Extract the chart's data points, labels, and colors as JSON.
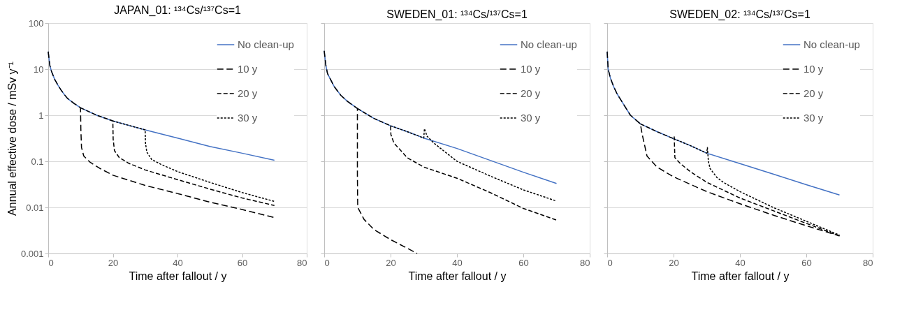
{
  "chart_data": [
    {
      "type": "line",
      "title": "JAPAN_01: ¹³⁴Cs/¹³⁷Cs=1",
      "xlabel": "Time after fallout / y",
      "ylabel": "Annual effective dose / mSv y⁻¹",
      "xlim": [
        0,
        80
      ],
      "xticks": [
        0,
        20,
        40,
        60,
        80
      ],
      "ylim": [
        0.001,
        100
      ],
      "yticks": [
        0.001,
        0.01,
        0.1,
        1,
        10,
        100
      ],
      "log": "y",
      "grid": "y",
      "legend": "top right",
      "series": [
        {
          "name": "No clean-up",
          "color": "#4472c4",
          "line_style": "solid",
          "x": [
            0,
            0.5,
            1,
            2,
            3,
            4,
            5,
            6,
            8,
            10,
            15,
            20,
            25,
            30,
            40,
            50,
            60,
            70
          ],
          "values": [
            24,
            12,
            9,
            6,
            4.5,
            3.5,
            2.8,
            2.3,
            1.8,
            1.45,
            1.0,
            0.75,
            0.6,
            0.48,
            0.32,
            0.21,
            0.15,
            0.105
          ]
        },
        {
          "name": "10 y",
          "color": "#000000",
          "line_style": "dashed",
          "x": [
            0,
            0.5,
            1,
            2,
            3,
            4,
            5,
            6,
            8,
            10,
            10.1,
            10.3,
            11,
            13,
            16,
            20,
            30,
            40,
            50,
            60,
            70
          ],
          "values": [
            24,
            12,
            9,
            6,
            4.5,
            3.5,
            2.8,
            2.3,
            1.8,
            1.45,
            0.5,
            0.2,
            0.13,
            0.095,
            0.07,
            0.05,
            0.03,
            0.02,
            0.013,
            0.009,
            0.006
          ]
        },
        {
          "name": "20 y",
          "color": "#000000",
          "line_style": "dashed",
          "x": [
            10,
            15,
            20,
            20.1,
            20.5,
            22,
            25,
            30,
            40,
            50,
            60,
            70
          ],
          "values": [
            1.45,
            1.0,
            0.75,
            0.3,
            0.17,
            0.12,
            0.09,
            0.065,
            0.04,
            0.025,
            0.016,
            0.011
          ]
        },
        {
          "name": "30 y",
          "color": "#000000",
          "line_style": "dotted",
          "x": [
            20,
            25,
            30,
            30.1,
            30.5,
            32,
            35,
            40,
            50,
            60,
            70
          ],
          "values": [
            0.75,
            0.6,
            0.48,
            0.25,
            0.16,
            0.11,
            0.085,
            0.06,
            0.035,
            0.021,
            0.0135
          ]
        }
      ]
    },
    {
      "type": "line",
      "title": "SWEDEN_01: ¹³⁴Cs/¹³⁷Cs=1",
      "xlabel": "Time after fallout / y",
      "xlim": [
        0,
        80
      ],
      "xticks": [
        0,
        20,
        40,
        60,
        80
      ],
      "ylim": [
        0.001,
        100
      ],
      "yticks": [
        0.001,
        0.01,
        0.1,
        1,
        10,
        100
      ],
      "log": "y",
      "grid": "y",
      "legend": "top right",
      "tick_labels": "x",
      "series": [
        {
          "name": "No clean-up",
          "color": "#4472c4",
          "line_style": "solid",
          "x": [
            0,
            0.5,
            1,
            2,
            3,
            5,
            7,
            10,
            15,
            20,
            25,
            30,
            40,
            50,
            60,
            70
          ],
          "values": [
            25,
            12,
            8,
            5.8,
            4.2,
            2.7,
            2.0,
            1.4,
            0.85,
            0.59,
            0.44,
            0.32,
            0.19,
            0.105,
            0.058,
            0.033
          ]
        },
        {
          "name": "10 y",
          "color": "#000000",
          "line_style": "dashed",
          "x": [
            0,
            0.5,
            1,
            2,
            3,
            5,
            7,
            10,
            10,
            10.1,
            12,
            15,
            20,
            25,
            28
          ],
          "values": [
            25,
            12,
            8,
            5.8,
            4.2,
            2.7,
            2.0,
            1.4,
            0.05,
            0.01,
            0.0055,
            0.0033,
            0.002,
            0.0013,
            0.001
          ]
        },
        {
          "name": "20 y",
          "color": "#000000",
          "line_style": "dashed",
          "x": [
            10,
            15,
            20,
            20.1,
            21,
            25,
            30,
            40,
            50,
            60,
            70
          ],
          "values": [
            1.4,
            0.85,
            0.59,
            0.38,
            0.25,
            0.12,
            0.075,
            0.043,
            0.021,
            0.0095,
            0.0053
          ]
        },
        {
          "name": "30 y",
          "color": "#000000",
          "line_style": "dotted",
          "x": [
            20,
            25,
            30,
            30.2,
            31,
            33,
            40,
            50,
            60,
            70
          ],
          "values": [
            0.59,
            0.44,
            0.32,
            0.51,
            0.35,
            0.25,
            0.1,
            0.048,
            0.024,
            0.0137
          ]
        }
      ]
    },
    {
      "type": "line",
      "title": "SWEDEN_02: ¹³⁴Cs/¹³⁷Cs=1",
      "xlabel": "Time after fallout / y",
      "xlim": [
        0,
        80
      ],
      "xticks": [
        0,
        20,
        40,
        60,
        80
      ],
      "ylim": [
        0.001,
        100
      ],
      "yticks": [
        0.001,
        0.01,
        0.1,
        1,
        10,
        100
      ],
      "log": "y",
      "grid": "y",
      "legend": "top right",
      "tick_labels": "x",
      "series": [
        {
          "name": "No clean-up",
          "color": "#4472c4",
          "line_style": "solid",
          "x": [
            0,
            0.3,
            1,
            2,
            3,
            5,
            7,
            10,
            15,
            20,
            25,
            30,
            40,
            50,
            60,
            70
          ],
          "values": [
            24,
            10,
            6.3,
            4.1,
            2.9,
            1.7,
            1.0,
            0.65,
            0.44,
            0.31,
            0.22,
            0.15,
            0.089,
            0.053,
            0.031,
            0.0186
          ]
        },
        {
          "name": "10 y",
          "color": "#000000",
          "line_style": "dashed",
          "x": [
            0,
            0.3,
            1,
            2,
            3,
            5,
            7,
            10,
            10.5,
            12,
            15,
            20,
            30,
            40,
            50,
            60,
            70
          ],
          "values": [
            24,
            10,
            6.3,
            4.1,
            2.9,
            1.7,
            1.0,
            0.65,
            0.4,
            0.13,
            0.075,
            0.046,
            0.022,
            0.012,
            0.0068,
            0.004,
            0.0024
          ]
        },
        {
          "name": "20 y",
          "color": "#000000",
          "line_style": "dashed",
          "x": [
            10,
            15,
            20,
            20.2,
            20.4,
            22,
            25,
            30,
            40,
            50,
            60,
            70
          ],
          "values": [
            0.65,
            0.44,
            0.31,
            0.34,
            0.12,
            0.09,
            0.06,
            0.035,
            0.016,
            0.0085,
            0.0045,
            0.0024
          ]
        },
        {
          "name": "30 y",
          "color": "#000000",
          "line_style": "dotted",
          "x": [
            20,
            25,
            30,
            30.2,
            30.5,
            31,
            33,
            35,
            40,
            50,
            60,
            70
          ],
          "values": [
            0.31,
            0.22,
            0.15,
            0.2,
            0.1,
            0.07,
            0.045,
            0.035,
            0.022,
            0.01,
            0.005,
            0.0025
          ]
        }
      ]
    }
  ]
}
